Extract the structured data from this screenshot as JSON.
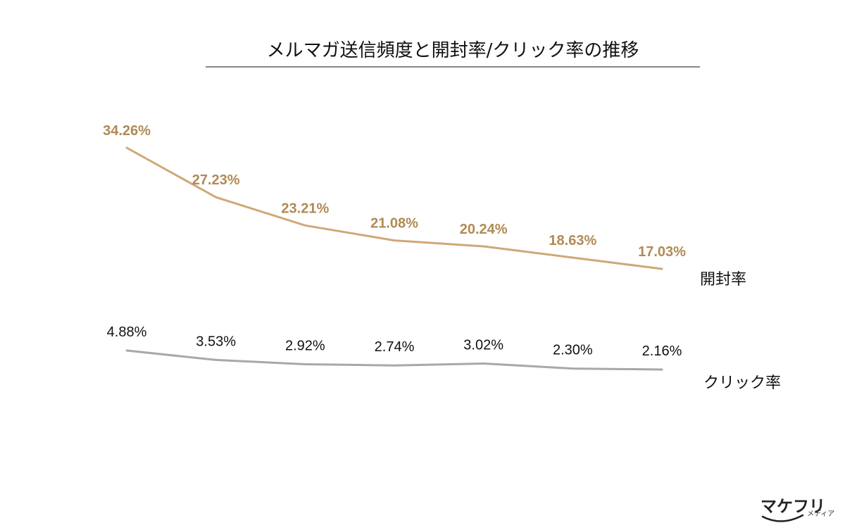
{
  "chart_data": {
    "type": "line",
    "title": "メルマガ送信頻度と開封率/クリック率の推移",
    "categories": [
      "",
      "",
      "",
      "",
      "",
      "",
      ""
    ],
    "series": [
      {
        "name": "開封率",
        "values": [
          34.26,
          27.23,
          23.21,
          21.08,
          20.24,
          18.63,
          17.03
        ],
        "labels": [
          "34.26%",
          "27.23%",
          "23.21%",
          "21.08%",
          "20.24%",
          "18.63%",
          "17.03%"
        ],
        "color": "#cfa877",
        "label_color": "#b08a55"
      },
      {
        "name": "クリック率",
        "values": [
          4.88,
          3.53,
          2.92,
          2.74,
          3.02,
          2.3,
          2.16
        ],
        "labels": [
          "4.88%",
          "3.53%",
          "2.92%",
          "2.74%",
          "3.02%",
          "2.30%",
          "2.16%"
        ],
        "color": "#a8a8a8",
        "label_color": "#111111"
      }
    ],
    "grid": false,
    "legend": "inline-right"
  },
  "branding": {
    "logo_text": "マケフリ",
    "logo_sub": "メディア"
  }
}
